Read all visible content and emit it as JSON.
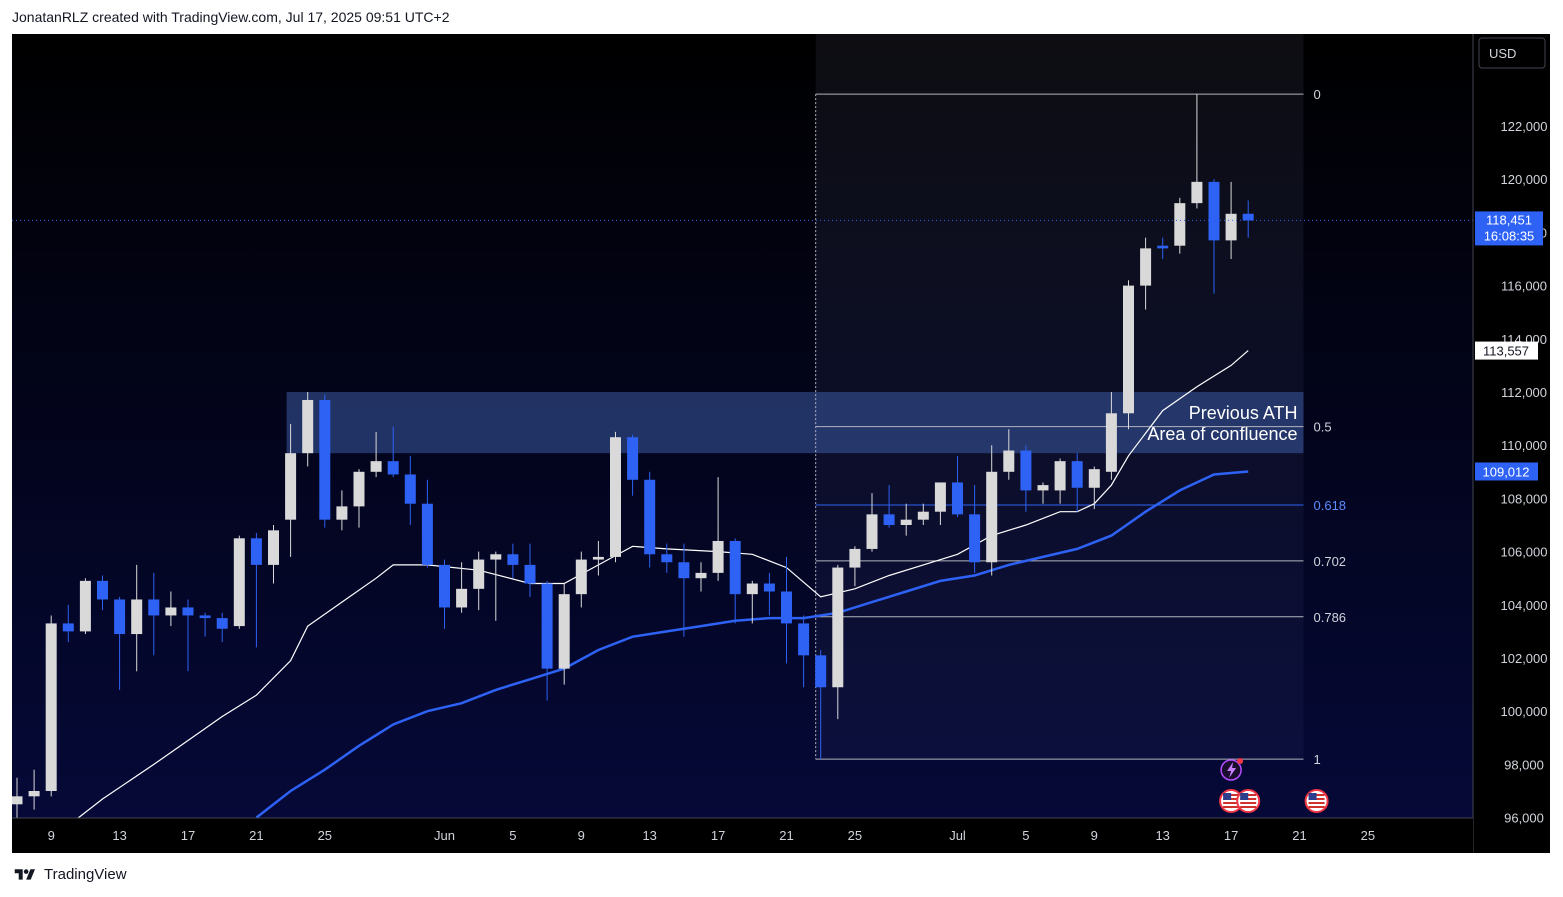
{
  "header": {
    "attribution": "JonatanRLZ created with TradingView.com, Jul 17, 2025 09:51 UTC+2"
  },
  "footer": {
    "brand": "TradingView"
  },
  "colors": {
    "background": "#000000",
    "gradient_bottom": "#06093a",
    "bull": "#d9d9d9",
    "bear": "#2d62f5",
    "ma_fast": "#ffffff",
    "ma_slow": "#2d62f5",
    "zone": "#3a5aa0"
  },
  "chart_data": {
    "type": "candlestick",
    "currency": "USD",
    "ylim": [
      96000,
      124000
    ],
    "y_ticks": [
      96000,
      98000,
      100000,
      102000,
      104000,
      106000,
      108000,
      110000,
      112000,
      114000,
      116000,
      118000,
      120000,
      122000
    ],
    "x_ticks": [
      {
        "i": 2,
        "label": "9"
      },
      {
        "i": 6,
        "label": "13"
      },
      {
        "i": 10,
        "label": "17"
      },
      {
        "i": 14,
        "label": "21"
      },
      {
        "i": 18,
        "label": "25"
      },
      {
        "i": 25,
        "label": "Jun"
      },
      {
        "i": 29,
        "label": "5"
      },
      {
        "i": 33,
        "label": "9"
      },
      {
        "i": 37,
        "label": "13"
      },
      {
        "i": 41,
        "label": "17"
      },
      {
        "i": 45,
        "label": "21"
      },
      {
        "i": 49,
        "label": "25"
      },
      {
        "i": 55,
        "label": "Jul"
      },
      {
        "i": 59,
        "label": "5"
      },
      {
        "i": 63,
        "label": "9"
      },
      {
        "i": 67,
        "label": "13"
      },
      {
        "i": 71,
        "label": "17"
      },
      {
        "i": 75,
        "label": "21"
      },
      {
        "i": 79,
        "label": "25"
      }
    ],
    "candles": [
      {
        "o": 96500,
        "h": 97500,
        "l": 95800,
        "c": 96800
      },
      {
        "o": 96800,
        "h": 97800,
        "l": 96300,
        "c": 97000
      },
      {
        "o": 97000,
        "h": 103600,
        "l": 96800,
        "c": 103300
      },
      {
        "o": 103300,
        "h": 104000,
        "l": 102600,
        "c": 103000
      },
      {
        "o": 103000,
        "h": 105000,
        "l": 102900,
        "c": 104900
      },
      {
        "o": 104900,
        "h": 105100,
        "l": 103800,
        "c": 104200
      },
      {
        "o": 104200,
        "h": 104300,
        "l": 100800,
        "c": 102900
      },
      {
        "o": 102900,
        "h": 105500,
        "l": 101500,
        "c": 104200
      },
      {
        "o": 104200,
        "h": 105200,
        "l": 102100,
        "c": 103600
      },
      {
        "o": 103600,
        "h": 104500,
        "l": 103200,
        "c": 103900
      },
      {
        "o": 103900,
        "h": 104200,
        "l": 101500,
        "c": 103600
      },
      {
        "o": 103600,
        "h": 103700,
        "l": 102800,
        "c": 103500
      },
      {
        "o": 103500,
        "h": 103700,
        "l": 102600,
        "c": 103100
      },
      {
        "o": 103200,
        "h": 106600,
        "l": 103100,
        "c": 106500
      },
      {
        "o": 106500,
        "h": 106700,
        "l": 102400,
        "c": 105500
      },
      {
        "o": 105500,
        "h": 107000,
        "l": 104800,
        "c": 106800
      },
      {
        "o": 107200,
        "h": 110800,
        "l": 105800,
        "c": 109700
      },
      {
        "o": 109700,
        "h": 112000,
        "l": 109200,
        "c": 111700
      },
      {
        "o": 111700,
        "h": 111900,
        "l": 106900,
        "c": 107200
      },
      {
        "o": 107200,
        "h": 108300,
        "l": 106800,
        "c": 107700
      },
      {
        "o": 107700,
        "h": 109100,
        "l": 106900,
        "c": 109000
      },
      {
        "o": 109000,
        "h": 110500,
        "l": 108800,
        "c": 109400
      },
      {
        "o": 109400,
        "h": 110700,
        "l": 108800,
        "c": 108900
      },
      {
        "o": 108900,
        "h": 109600,
        "l": 107000,
        "c": 107800
      },
      {
        "o": 107800,
        "h": 108700,
        "l": 105400,
        "c": 105500
      },
      {
        "o": 105500,
        "h": 105700,
        "l": 103100,
        "c": 103900
      },
      {
        "o": 103900,
        "h": 105600,
        "l": 103700,
        "c": 104600
      },
      {
        "o": 104600,
        "h": 106000,
        "l": 103800,
        "c": 105700
      },
      {
        "o": 105700,
        "h": 106000,
        "l": 103400,
        "c": 105900
      },
      {
        "o": 105900,
        "h": 106300,
        "l": 105000,
        "c": 105500
      },
      {
        "o": 105500,
        "h": 106300,
        "l": 104300,
        "c": 104800
      },
      {
        "o": 104800,
        "h": 104900,
        "l": 100400,
        "c": 101600
      },
      {
        "o": 101600,
        "h": 104800,
        "l": 101000,
        "c": 104400
      },
      {
        "o": 104400,
        "h": 106000,
        "l": 103900,
        "c": 105700
      },
      {
        "o": 105700,
        "h": 106400,
        "l": 105100,
        "c": 105800
      },
      {
        "o": 105800,
        "h": 110500,
        "l": 105600,
        "c": 110300
      },
      {
        "o": 110300,
        "h": 110400,
        "l": 108100,
        "c": 108700
      },
      {
        "o": 108700,
        "h": 109000,
        "l": 105400,
        "c": 105900
      },
      {
        "o": 105900,
        "h": 106300,
        "l": 105200,
        "c": 105600
      },
      {
        "o": 105600,
        "h": 106300,
        "l": 102800,
        "c": 105000
      },
      {
        "o": 105000,
        "h": 105600,
        "l": 104500,
        "c": 105200
      },
      {
        "o": 105200,
        "h": 108800,
        "l": 104900,
        "c": 106400
      },
      {
        "o": 106400,
        "h": 106500,
        "l": 103300,
        "c": 104400
      },
      {
        "o": 104400,
        "h": 104900,
        "l": 103300,
        "c": 104800
      },
      {
        "o": 104800,
        "h": 105200,
        "l": 103600,
        "c": 104500
      },
      {
        "o": 104500,
        "h": 105800,
        "l": 101800,
        "c": 103300
      },
      {
        "o": 103300,
        "h": 103600,
        "l": 100900,
        "c": 102100
      },
      {
        "o": 102100,
        "h": 102300,
        "l": 98200,
        "c": 100900
      },
      {
        "o": 100900,
        "h": 105500,
        "l": 99700,
        "c": 105400
      },
      {
        "o": 105400,
        "h": 106200,
        "l": 104700,
        "c": 106100
      },
      {
        "o": 106100,
        "h": 108200,
        "l": 106000,
        "c": 107400
      },
      {
        "o": 107400,
        "h": 108500,
        "l": 106900,
        "c": 107000
      },
      {
        "o": 107000,
        "h": 107800,
        "l": 106600,
        "c": 107200
      },
      {
        "o": 107200,
        "h": 107800,
        "l": 107000,
        "c": 107500
      },
      {
        "o": 107500,
        "h": 108500,
        "l": 107000,
        "c": 108600
      },
      {
        "o": 108600,
        "h": 109600,
        "l": 107300,
        "c": 107400
      },
      {
        "o": 107400,
        "h": 108500,
        "l": 105200,
        "c": 105600
      },
      {
        "o": 105600,
        "h": 110000,
        "l": 105100,
        "c": 109000
      },
      {
        "o": 109000,
        "h": 110600,
        "l": 108700,
        "c": 109800
      },
      {
        "o": 109800,
        "h": 110000,
        "l": 107500,
        "c": 108300
      },
      {
        "o": 108300,
        "h": 108600,
        "l": 107800,
        "c": 108500
      },
      {
        "o": 108300,
        "h": 109500,
        "l": 107800,
        "c": 109400
      },
      {
        "o": 109400,
        "h": 109700,
        "l": 107500,
        "c": 108400
      },
      {
        "o": 108400,
        "h": 109200,
        "l": 107600,
        "c": 109100
      },
      {
        "o": 109000,
        "h": 112000,
        "l": 108700,
        "c": 111200
      },
      {
        "o": 111200,
        "h": 116200,
        "l": 110600,
        "c": 116000
      },
      {
        "o": 116000,
        "h": 117800,
        "l": 115100,
        "c": 117400
      },
      {
        "o": 117500,
        "h": 117800,
        "l": 117000,
        "c": 117400
      },
      {
        "o": 117500,
        "h": 119300,
        "l": 117200,
        "c": 119100
      },
      {
        "o": 119100,
        "h": 123200,
        "l": 118900,
        "c": 119900
      },
      {
        "o": 119900,
        "h": 120000,
        "l": 115700,
        "c": 117700
      },
      {
        "o": 117700,
        "h": 119900,
        "l": 117000,
        "c": 118700
      },
      {
        "o": 118700,
        "h": 119200,
        "l": 117800,
        "c": 118451
      }
    ],
    "ma_fast": [
      {
        "i": 3,
        "v": 95700
      },
      {
        "i": 5,
        "v": 96700
      },
      {
        "i": 8,
        "v": 98000
      },
      {
        "i": 10,
        "v": 98900
      },
      {
        "i": 12,
        "v": 99800
      },
      {
        "i": 14,
        "v": 100600
      },
      {
        "i": 16,
        "v": 101900
      },
      {
        "i": 17,
        "v": 103200
      },
      {
        "i": 19,
        "v": 104100
      },
      {
        "i": 21,
        "v": 105000
      },
      {
        "i": 22,
        "v": 105500
      },
      {
        "i": 24,
        "v": 105500
      },
      {
        "i": 27,
        "v": 105300
      },
      {
        "i": 30,
        "v": 104800
      },
      {
        "i": 32,
        "v": 104800
      },
      {
        "i": 34,
        "v": 105500
      },
      {
        "i": 36,
        "v": 106200
      },
      {
        "i": 38,
        "v": 106100
      },
      {
        "i": 41,
        "v": 106000
      },
      {
        "i": 43,
        "v": 105900
      },
      {
        "i": 45,
        "v": 105400
      },
      {
        "i": 47,
        "v": 104300
      },
      {
        "i": 49,
        "v": 104600
      },
      {
        "i": 51,
        "v": 105100
      },
      {
        "i": 53,
        "v": 105500
      },
      {
        "i": 55,
        "v": 105900
      },
      {
        "i": 57,
        "v": 106600
      },
      {
        "i": 59,
        "v": 107000
      },
      {
        "i": 61,
        "v": 107500
      },
      {
        "i": 62,
        "v": 107500
      },
      {
        "i": 63,
        "v": 107800
      },
      {
        "i": 64,
        "v": 108500
      },
      {
        "i": 65,
        "v": 109600
      },
      {
        "i": 67,
        "v": 111300
      },
      {
        "i": 69,
        "v": 112200
      },
      {
        "i": 71,
        "v": 113000
      },
      {
        "i": 72,
        "v": 113557
      }
    ],
    "ma_slow": [
      {
        "i": 14,
        "v": 96000
      },
      {
        "i": 16,
        "v": 97000
      },
      {
        "i": 18,
        "v": 97800
      },
      {
        "i": 20,
        "v": 98700
      },
      {
        "i": 22,
        "v": 99500
      },
      {
        "i": 24,
        "v": 100000
      },
      {
        "i": 26,
        "v": 100300
      },
      {
        "i": 28,
        "v": 100800
      },
      {
        "i": 30,
        "v": 101200
      },
      {
        "i": 32,
        "v": 101600
      },
      {
        "i": 34,
        "v": 102300
      },
      {
        "i": 36,
        "v": 102800
      },
      {
        "i": 38,
        "v": 103000
      },
      {
        "i": 40,
        "v": 103200
      },
      {
        "i": 42,
        "v": 103400
      },
      {
        "i": 44,
        "v": 103500
      },
      {
        "i": 46,
        "v": 103500
      },
      {
        "i": 48,
        "v": 103700
      },
      {
        "i": 50,
        "v": 104100
      },
      {
        "i": 52,
        "v": 104500
      },
      {
        "i": 54,
        "v": 104900
      },
      {
        "i": 56,
        "v": 105100
      },
      {
        "i": 58,
        "v": 105500
      },
      {
        "i": 60,
        "v": 105800
      },
      {
        "i": 62,
        "v": 106100
      },
      {
        "i": 64,
        "v": 106600
      },
      {
        "i": 66,
        "v": 107500
      },
      {
        "i": 68,
        "v": 108300
      },
      {
        "i": 70,
        "v": 108900
      },
      {
        "i": 72,
        "v": 109012
      }
    ],
    "zone": {
      "i_start": 16,
      "i_end": 75,
      "top": 112000,
      "bottom": 109700
    },
    "zone_labels": [
      "Previous ATH",
      "Area of confluence"
    ],
    "fib": {
      "i_start": 47,
      "i_end": 75,
      "high": 123200,
      "low": 98200,
      "levels": [
        {
          "ratio": "0",
          "price": 123200
        },
        {
          "ratio": "0.5",
          "price": 110700
        },
        {
          "ratio": "0.618",
          "price": 107750
        },
        {
          "ratio": "0.702",
          "price": 105650
        },
        {
          "ratio": "0.786",
          "price": 103550
        },
        {
          "ratio": "1",
          "price": 98200
        }
      ]
    },
    "price_labels": [
      {
        "label": "113,557",
        "price": 113557,
        "style": "white"
      },
      {
        "label": "109,012",
        "price": 109012,
        "style": "blue"
      }
    ],
    "last_price": {
      "label": "118,451",
      "countdown": "16:08:35",
      "price": 118451
    },
    "event_icons": [
      {
        "i": 71,
        "kind": "flash-icon"
      },
      {
        "i": 71,
        "kind": "us-flag-icon"
      },
      {
        "i": 72,
        "kind": "us-flag-icon"
      },
      {
        "i": 76,
        "kind": "us-flag-icon"
      }
    ]
  }
}
